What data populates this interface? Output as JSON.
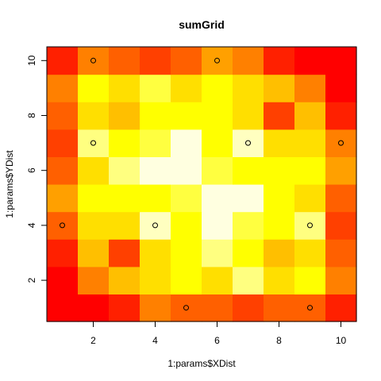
{
  "chart_data": {
    "type": "heatmap",
    "title": "sumGrid",
    "xlabel": "1:params$XDist",
    "ylabel": "1:params$YDist",
    "xlim": [
      0.5,
      10.5
    ],
    "ylim": [
      0.5,
      10.5
    ],
    "x_ticks": [
      2,
      4,
      6,
      8,
      10
    ],
    "y_ticks": [
      2,
      4,
      6,
      8,
      10
    ],
    "grid": false,
    "palette": [
      "#FF0000",
      "#FF2000",
      "#FF4000",
      "#FF6000",
      "#FF8000",
      "#FFA000",
      "#FFBF00",
      "#FFDF00",
      "#FFFF00",
      "#FFFF40",
      "#FFFF80",
      "#FFFFC0",
      "#FFFFE0"
    ],
    "levels_note_rows_from_bottom": true,
    "z": [
      [
        0,
        0,
        1,
        4,
        3,
        3,
        2,
        3,
        3,
        1
      ],
      [
        0,
        4,
        6,
        7,
        8,
        7,
        10,
        7,
        8,
        4
      ],
      [
        1,
        6,
        2,
        7,
        8,
        10,
        8,
        6,
        7,
        3
      ],
      [
        3,
        7,
        7,
        11,
        8,
        12,
        9,
        8,
        10,
        2
      ],
      [
        5,
        8,
        8,
        8,
        9,
        12,
        12,
        8,
        7,
        3
      ],
      [
        3,
        7,
        10,
        12,
        12,
        9,
        8,
        8,
        8,
        5
      ],
      [
        2,
        10,
        8,
        9,
        12,
        8,
        11,
        7,
        7,
        4
      ],
      [
        3,
        7,
        6,
        8,
        8,
        8,
        7,
        2,
        6,
        1
      ],
      [
        4,
        8,
        7,
        9,
        7,
        8,
        7,
        6,
        4,
        0
      ],
      [
        1,
        4,
        3,
        2,
        3,
        5,
        4,
        1,
        0,
        0
      ]
    ],
    "markers": [
      {
        "x": 2,
        "y": 10
      },
      {
        "x": 6,
        "y": 10
      },
      {
        "x": 2,
        "y": 7
      },
      {
        "x": 7,
        "y": 7
      },
      {
        "x": 10,
        "y": 7
      },
      {
        "x": 1,
        "y": 4
      },
      {
        "x": 4,
        "y": 4
      },
      {
        "x": 9,
        "y": 4
      },
      {
        "x": 5,
        "y": 1
      },
      {
        "x": 9,
        "y": 1
      }
    ]
  }
}
